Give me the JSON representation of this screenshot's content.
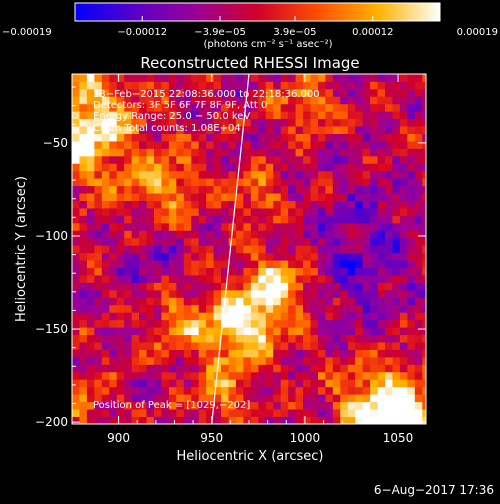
{
  "chart_data": {
    "type": "heatmap",
    "title": "Reconstructed RHESSI Image",
    "xlabel": "Heliocentric X (arcsec)",
    "ylabel": "Heliocentric Y (arcsec)",
    "xlim": [
      875,
      1065
    ],
    "ylim": [
      -201,
      -13
    ],
    "x_ticks": [
      900,
      950,
      1000,
      1050
    ],
    "x_tick_labels": [
      "900",
      "950",
      "1000",
      "1050"
    ],
    "y_ticks": [
      -200,
      -150,
      -100,
      -50
    ],
    "y_tick_labels": [
      "−200",
      "−150",
      "−100",
      "−50"
    ],
    "colorbar": {
      "min": -0.00019,
      "max": 0.00019,
      "ticks": [
        -0.00019,
        -0.00012,
        -3.9e-05,
        3.9e-05,
        0.00012,
        0.00019
      ],
      "tick_labels": [
        "−0.00019",
        "−0.00012",
        "−3.9e−05",
        "3.9e−05",
        "0.00012",
        "0.00019"
      ],
      "unit_label": "(photons cm⁻² s⁻¹ asec⁻²)",
      "colors": [
        "#0000ff",
        "#5a00c8",
        "#9b0096",
        "#d20028",
        "#ff5000",
        "#ffb400",
        "#ffffff"
      ]
    },
    "annotations": [
      "13−Feb−2015 22:08:36.000 to 22:18:36.000",
      "Detectors: 3F 5F 6F 7F 8F 9F, Att 0",
      "Energy Range: 25.0 − 50.0 keV",
      "Clean    Total counts: 1.08E+04",
      "Position of Peak = [1029,−202]"
    ],
    "limb_line": {
      "x": [
        950,
        970
      ],
      "y": [
        -201,
        -13
      ],
      "color": "#ffffff"
    },
    "footer": "6−Aug−2017 17:36"
  }
}
